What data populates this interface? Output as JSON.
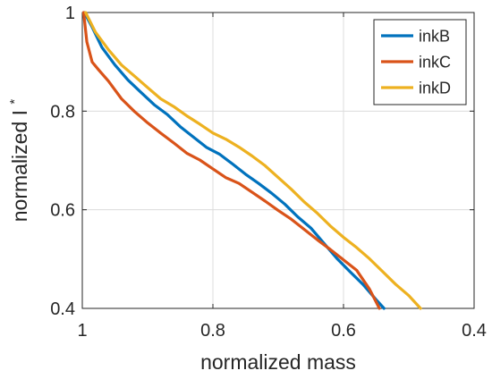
{
  "chart_data": {
    "type": "line",
    "xlabel": "normalized mass",
    "ylabel_main": "normalized I",
    "ylabel_superscript": "*",
    "xlim": [
      1,
      0.4
    ],
    "ylim": [
      0.4,
      1
    ],
    "x_reversed": true,
    "xticks": [
      1,
      0.8,
      0.6,
      0.4
    ],
    "xtick_labels": [
      "1",
      "0.8",
      "0.6",
      "0.4"
    ],
    "yticks": [
      0.4,
      0.6,
      0.8,
      1
    ],
    "ytick_labels": [
      "0.4",
      "0.6",
      "0.8",
      "1"
    ],
    "grid": true,
    "legend_position": "top-right",
    "series": [
      {
        "name": "inkB",
        "color": "#0072BD",
        "x": [
          0.997,
          0.985,
          0.97,
          0.95,
          0.93,
          0.91,
          0.89,
          0.87,
          0.85,
          0.83,
          0.81,
          0.79,
          0.77,
          0.75,
          0.73,
          0.71,
          0.69,
          0.67,
          0.65,
          0.63,
          0.61,
          0.59,
          0.57,
          0.55,
          0.538
        ],
        "y": [
          1.0,
          0.97,
          0.93,
          0.895,
          0.862,
          0.838,
          0.814,
          0.792,
          0.768,
          0.748,
          0.728,
          0.712,
          0.693,
          0.673,
          0.652,
          0.633,
          0.612,
          0.587,
          0.562,
          0.532,
          0.502,
          0.473,
          0.448,
          0.418,
          0.4
        ]
      },
      {
        "name": "inkC",
        "color": "#D95319",
        "x": [
          0.998,
          0.993,
          0.985,
          0.975,
          0.96,
          0.94,
          0.92,
          0.9,
          0.88,
          0.86,
          0.84,
          0.82,
          0.8,
          0.78,
          0.76,
          0.74,
          0.72,
          0.7,
          0.68,
          0.66,
          0.64,
          0.62,
          0.6,
          0.58,
          0.56,
          0.545
        ],
        "y": [
          1.0,
          0.94,
          0.9,
          0.885,
          0.86,
          0.825,
          0.8,
          0.775,
          0.755,
          0.736,
          0.716,
          0.7,
          0.683,
          0.666,
          0.652,
          0.635,
          0.618,
          0.6,
          0.58,
          0.56,
          0.54,
          0.518,
          0.498,
          0.478,
          0.44,
          0.4
        ]
      },
      {
        "name": "inkD",
        "color": "#EDB120",
        "x": [
          0.995,
          0.98,
          0.96,
          0.94,
          0.92,
          0.9,
          0.88,
          0.86,
          0.84,
          0.82,
          0.8,
          0.78,
          0.76,
          0.74,
          0.72,
          0.7,
          0.68,
          0.66,
          0.64,
          0.62,
          0.6,
          0.58,
          0.56,
          0.54,
          0.52,
          0.5,
          0.482
        ],
        "y": [
          1.0,
          0.96,
          0.925,
          0.895,
          0.87,
          0.848,
          0.826,
          0.808,
          0.79,
          0.774,
          0.757,
          0.742,
          0.727,
          0.71,
          0.688,
          0.665,
          0.642,
          0.617,
          0.592,
          0.567,
          0.545,
          0.522,
          0.5,
          0.475,
          0.45,
          0.425,
          0.4
        ]
      }
    ]
  }
}
